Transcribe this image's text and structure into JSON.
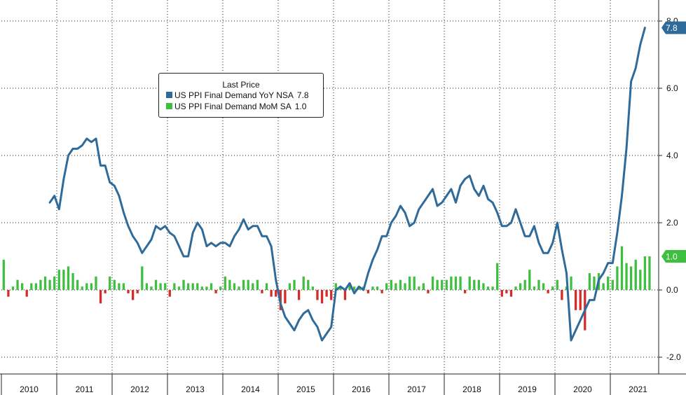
{
  "chart_data": {
    "type": "bar+line",
    "legend": {
      "title": "Last Price",
      "entries": [
        {
          "name": "US PPI Final Demand YoY NSA",
          "last": "7.8",
          "color": "#2f6b9a"
        },
        {
          "name": "US PPI Final Demand MoM SA",
          "last": "1.0",
          "color": "#3fbf3f"
        }
      ]
    },
    "x_labels": [
      "2010",
      "2011",
      "2012",
      "2013",
      "2014",
      "2015",
      "2016",
      "2017",
      "2018",
      "2019",
      "2020",
      "2021"
    ],
    "y_ticks": [
      "-2.0",
      "0.0",
      "2.0",
      "4.0",
      "6.0",
      "8.0"
    ],
    "ylim": [
      -2.4,
      8.5
    ],
    "grid": true,
    "y_axis_side": "right",
    "tags": [
      {
        "value": 7.8,
        "label": "7.8",
        "color": "#2f6b9a"
      },
      {
        "value": 1.0,
        "label": "1.0",
        "color": "#3fbf3f"
      }
    ],
    "series": [
      {
        "name": "US PPI Final Demand YoY NSA",
        "type": "line",
        "color": "#2f6b9a",
        "start": "2010-11",
        "values": [
          2.6,
          2.8,
          2.4,
          3.3,
          4.0,
          4.2,
          4.2,
          4.3,
          4.5,
          4.4,
          4.5,
          3.7,
          3.7,
          3.2,
          3.1,
          2.8,
          2.3,
          1.9,
          1.6,
          1.4,
          1.1,
          1.3,
          1.5,
          1.9,
          1.8,
          1.9,
          1.7,
          1.6,
          1.3,
          1.0,
          1.0,
          1.7,
          2.0,
          1.8,
          1.3,
          1.4,
          1.3,
          1.4,
          1.4,
          1.3,
          1.6,
          1.8,
          2.1,
          1.8,
          1.9,
          1.9,
          1.6,
          1.6,
          1.3,
          0.3,
          -0.4,
          -0.8,
          -1.0,
          -1.2,
          -0.9,
          -0.7,
          -0.6,
          -0.9,
          -1.1,
          -1.5,
          -1.3,
          -1.1,
          0.0,
          0.1,
          0.0,
          0.2,
          -0.1,
          0.1,
          0.0,
          0.5,
          0.9,
          1.2,
          1.6,
          1.6,
          2.0,
          2.2,
          2.5,
          2.3,
          1.9,
          2.0,
          2.4,
          2.6,
          2.8,
          3.0,
          2.5,
          2.6,
          2.8,
          3.0,
          2.6,
          3.1,
          3.3,
          3.4,
          3.0,
          2.8,
          3.1,
          2.7,
          2.6,
          2.3,
          1.9,
          1.9,
          2.0,
          2.4,
          2.0,
          1.6,
          1.6,
          1.9,
          1.4,
          1.1,
          1.1,
          1.4,
          2.0,
          1.2,
          0.5,
          -1.5,
          -1.2,
          -0.9,
          -0.6,
          -0.3,
          -0.3,
          0.3,
          0.5,
          0.8,
          0.8,
          1.7,
          2.8,
          4.2,
          6.2,
          6.6,
          7.3,
          7.8
        ]
      },
      {
        "name": "US PPI Final Demand MoM SA",
        "type": "bar",
        "start": "2010-01",
        "positive_color": "#3fbf3f",
        "negative_color": "#d42b2b",
        "values": [
          0.9,
          -0.2,
          0.1,
          0.3,
          0.2,
          -0.2,
          0.2,
          0.2,
          0.3,
          0.4,
          0.3,
          0.4,
          0.6,
          0.6,
          0.7,
          0.5,
          0.3,
          0.1,
          0.2,
          0.2,
          0.4,
          -0.4,
          -0.1,
          0.4,
          0.3,
          0.2,
          0.2,
          -0.1,
          -0.3,
          -0.1,
          0.7,
          0.2,
          0.1,
          0.3,
          0.2,
          0.2,
          -0.2,
          0.2,
          0.1,
          0.3,
          0.2,
          0.2,
          0.2,
          0.1,
          0.1,
          0.2,
          -0.1,
          0.1,
          0.4,
          0.3,
          0.2,
          0.1,
          0.3,
          0.3,
          0.2,
          0.3,
          -0.1,
          0.2,
          -0.2,
          -0.2,
          -0.6,
          -0.4,
          0.2,
          0.3,
          -0.3,
          0.4,
          0.3,
          0.1,
          -0.3,
          -0.4,
          -0.2,
          -0.3,
          0.2,
          0.1,
          -0.3,
          0.2,
          0.1,
          0.1,
          0.1,
          -0.1,
          0.1,
          0.1,
          -0.1,
          0.2,
          0.3,
          0.2,
          0.3,
          0.2,
          0.4,
          0.4,
          0.1,
          0.2,
          -0.1,
          0.4,
          0.3,
          0.3,
          0.3,
          0.4,
          0.4,
          0.4,
          -0.1,
          0.4,
          0.3,
          0.3,
          0.2,
          0.1,
          0.1,
          0.8,
          -0.2,
          -0.1,
          -0.2,
          0.1,
          0.2,
          0.3,
          0.6,
          0.1,
          0.3,
          0.2,
          -0.1,
          0.1,
          0.3,
          -0.3,
          0.1,
          0.4,
          -0.6,
          -0.6,
          -1.2,
          0.5,
          0.4,
          0.5,
          0.2,
          0.4,
          0.3,
          0.7,
          1.3,
          0.8,
          0.7,
          0.9,
          0.6,
          1.0,
          1.0
        ]
      }
    ]
  }
}
